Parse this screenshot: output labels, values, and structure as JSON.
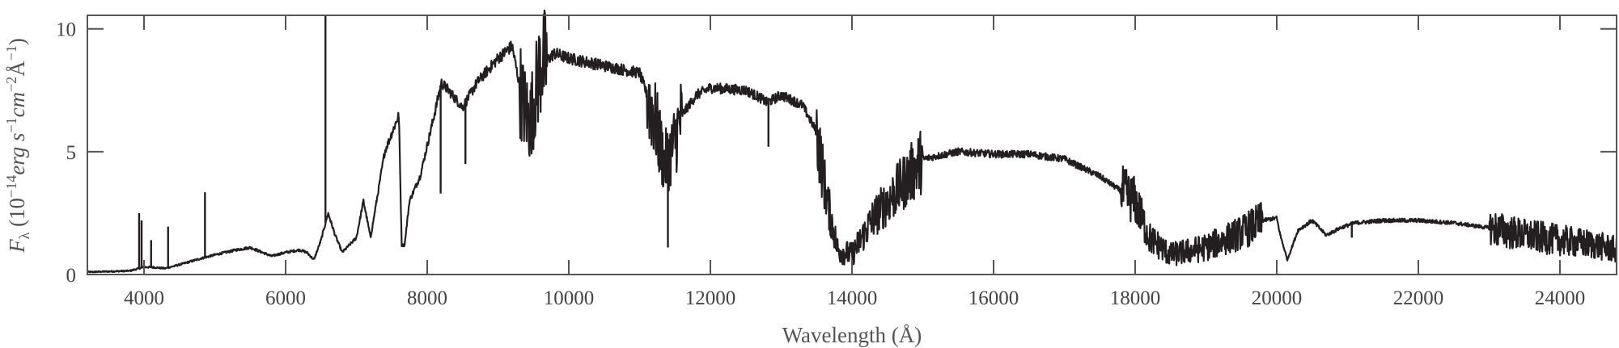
{
  "chart_data": {
    "type": "line",
    "title": "",
    "xlabel": "Wavelength (Å)",
    "ylabel": "F_λ (10^-14 erg s^-1 cm^-2 Å^-1)",
    "ylabel_parts": {
      "f": "F",
      "sub": "λ",
      "open": " (10",
      "exp14": "−14",
      "erg": "erg s",
      "exp1": "−1",
      "cm": "cm",
      "exp2": "−2",
      "ang": "Å",
      "exp1b": "−1",
      "close": ")"
    },
    "xlim": [
      3200,
      24800
    ],
    "ylim": [
      0,
      10.55
    ],
    "xticks": [
      4000,
      6000,
      8000,
      10000,
      12000,
      14000,
      16000,
      18000,
      20000,
      22000,
      24000
    ],
    "xtick_labels": [
      "4000",
      "6000",
      "8000",
      "10000",
      "12000",
      "14000",
      "16000",
      "18000",
      "20000",
      "22000",
      "24000"
    ],
    "yticks": [
      0,
      5,
      10
    ],
    "ytick_labels": [
      "0",
      "5",
      "10"
    ],
    "grid": false,
    "line_color": "#231f20",
    "series": [
      {
        "name": "spectrum",
        "x": [
          3200,
          3800,
          4000,
          4100,
          4300,
          4500,
          4800,
          5000,
          5300,
          5500,
          5800,
          6000,
          6200,
          6300,
          6400,
          6500,
          6600,
          6700,
          6800,
          7000,
          7100,
          7200,
          7400,
          7600,
          7640,
          7680,
          7750,
          7900,
          8100,
          8200,
          8300,
          8500,
          8700,
          9000,
          9200,
          9350,
          9450,
          9600,
          9800,
          10000,
          10500,
          11000,
          11200,
          11350,
          11450,
          11600,
          11800,
          12000,
          12500,
          12700,
          12800,
          13000,
          13300,
          13500,
          13650,
          13800,
          14000,
          14300,
          14600,
          14800,
          15000,
          15500,
          16000,
          16500,
          17000,
          17500,
          18000,
          18200,
          18500,
          19000,
          19500,
          19800,
          20000,
          20050,
          20150,
          20300,
          20500,
          20700,
          20900,
          21100,
          21500,
          22000,
          22500,
          23000,
          23500,
          24000,
          24500,
          24800
        ],
        "y": [
          0.1,
          0.15,
          0.3,
          0.3,
          0.25,
          0.4,
          0.65,
          0.8,
          1.0,
          1.1,
          0.75,
          0.9,
          1.0,
          0.9,
          0.6,
          1.4,
          2.5,
          1.6,
          0.9,
          1.5,
          3.0,
          1.5,
          5.0,
          6.5,
          1.2,
          1.2,
          3.0,
          4.0,
          6.5,
          7.8,
          7.5,
          6.8,
          7.8,
          8.8,
          9.3,
          7.0,
          6.2,
          8.5,
          9.0,
          8.8,
          8.5,
          8.2,
          6.5,
          4.5,
          5.0,
          6.5,
          7.3,
          7.6,
          7.5,
          7.2,
          7.0,
          7.3,
          6.9,
          5.8,
          3.0,
          1.0,
          0.8,
          2.3,
          3.3,
          4.0,
          4.7,
          5.0,
          4.9,
          4.9,
          4.7,
          4.0,
          3.0,
          1.5,
          0.8,
          1.1,
          1.7,
          2.2,
          2.3,
          1.6,
          0.6,
          1.8,
          2.2,
          1.6,
          1.9,
          2.1,
          2.2,
          2.2,
          2.1,
          1.9,
          1.6,
          1.4,
          1.2,
          1.0
        ]
      }
    ],
    "emission_lines": [
      {
        "x": 3931,
        "y": 2.5
      },
      {
        "x": 3966,
        "y": 2.2
      },
      {
        "x": 4100,
        "y": 1.4
      },
      {
        "x": 4340,
        "y": 1.95
      },
      {
        "x": 4861,
        "y": 3.35
      },
      {
        "x": 6563,
        "y": 10.55
      }
    ],
    "absorption_lines": [
      {
        "x": 8190,
        "y": 3.3
      },
      {
        "x": 8540,
        "y": 4.5
      },
      {
        "x": 11400,
        "y": 1.1
      },
      {
        "x": 12820,
        "y": 5.2
      },
      {
        "x": 21060,
        "y": 1.5
      }
    ]
  }
}
